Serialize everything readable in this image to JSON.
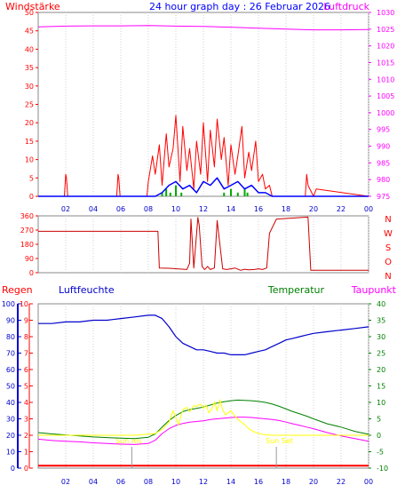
{
  "chart_data": [
    {
      "type": "line",
      "title": "24 hour graph day : 26 Februar 2026",
      "left_label": "Windstärke",
      "right_label": "Luftdruck",
      "x_ticks": [
        "02",
        "04",
        "06",
        "08",
        "10",
        "12",
        "14",
        "16",
        "18",
        "20",
        "22",
        "00"
      ],
      "y_left": {
        "range": [
          0,
          50
        ],
        "ticks": [
          "0",
          "5",
          "10",
          "15",
          "20",
          "25",
          "30",
          "35",
          "40",
          "45",
          "50"
        ]
      },
      "y_right": {
        "range": [
          975,
          1030
        ],
        "ticks": [
          "975",
          "980",
          "985",
          "990",
          "995",
          "1000",
          "1005",
          "1010",
          "1015",
          "1020",
          "1025",
          "1030"
        ]
      },
      "series": [
        {
          "key": "gust",
          "hours": [
            0,
            1.9,
            2.0,
            2.05,
            2.15,
            5.7,
            5.8,
            5.85,
            5.95,
            7.9,
            8.0,
            8.3,
            8.5,
            8.8,
            9.0,
            9.3,
            9.5,
            9.8,
            10.0,
            10.3,
            10.5,
            10.8,
            11.0,
            11.3,
            11.5,
            11.8,
            12.0,
            12.3,
            12.5,
            12.8,
            13.0,
            13.3,
            13.5,
            13.8,
            14.0,
            14.3,
            14.5,
            14.8,
            15.0,
            15.3,
            15.5,
            15.8,
            16.0,
            16.3,
            16.5,
            16.8,
            17.0,
            17.3,
            19.4,
            19.5,
            19.6,
            20.0,
            20.2,
            24
          ],
          "values": [
            0,
            0,
            6,
            5,
            0,
            0,
            6,
            5,
            0,
            0,
            4,
            11,
            6,
            14,
            3,
            17,
            8,
            13,
            22,
            4,
            19,
            7,
            13,
            2,
            15,
            6,
            20,
            4,
            18,
            8,
            21,
            10,
            16,
            3,
            14,
            6,
            11,
            19,
            5,
            12,
            7,
            15,
            4,
            6,
            2,
            3,
            0,
            0,
            0,
            6,
            3,
            0,
            2,
            0
          ]
        },
        {
          "key": "wind",
          "hours": [
            0,
            8.5,
            9,
            9.5,
            10,
            10.5,
            11,
            11.5,
            12,
            12.5,
            13,
            13.5,
            14,
            14.5,
            15,
            15.5,
            16,
            16.5,
            17,
            24
          ],
          "values": [
            0,
            0,
            1,
            3,
            4,
            2,
            3,
            1,
            4,
            3,
            5,
            2,
            3,
            4,
            2,
            3,
            1,
            1,
            0,
            0
          ]
        },
        {
          "key": "rain",
          "hours": [
            9,
            9.3,
            9.6,
            10,
            10.4,
            13.5,
            14,
            14.5,
            15,
            15.2
          ],
          "values": [
            1,
            2,
            1,
            3,
            1,
            1,
            2,
            1,
            2,
            1
          ]
        },
        {
          "key": "pressure",
          "hours": [
            0,
            2,
            4,
            6,
            8,
            10,
            12,
            14,
            16,
            18,
            20,
            22,
            24
          ],
          "values": [
            1025.7,
            1025.9,
            1026.0,
            1026.0,
            1026.1,
            1025.9,
            1025.8,
            1025.6,
            1025.3,
            1025.0,
            1024.8,
            1024.8,
            1024.9
          ]
        }
      ]
    },
    {
      "type": "line",
      "right_label": "N W S O N",
      "x_ticks": [],
      "y_left": {
        "range": [
          0,
          360
        ],
        "ticks": [
          "0",
          "90",
          "180",
          "270",
          "360"
        ]
      },
      "right_letters": [
        "N",
        "W",
        "S",
        "O",
        "N"
      ],
      "series": [
        {
          "key": "winddir",
          "hours": [
            0,
            8.7,
            8.8,
            9.5,
            10.8,
            11.0,
            11.1,
            11.3,
            11.6,
            11.7,
            11.9,
            12.1,
            12.3,
            12.5,
            12.8,
            13.0,
            13.4,
            13.7,
            14.0,
            14.3,
            14.7,
            15.0,
            15.3,
            15.7,
            16.0,
            16.3,
            16.6,
            16.8,
            17.3,
            19.6,
            19.8,
            20.1,
            24
          ],
          "values": [
            262,
            262,
            30,
            28,
            20,
            60,
            340,
            30,
            350,
            300,
            40,
            20,
            40,
            20,
            30,
            330,
            25,
            20,
            25,
            30,
            15,
            22,
            18,
            20,
            25,
            20,
            30,
            250,
            340,
            352,
            15,
            15,
            15
          ]
        }
      ]
    },
    {
      "type": "line",
      "left_label_1": "Regen",
      "left_label_2": "Luftfeuchte",
      "right_label_1": "Temperatur",
      "right_label_2": "Taupunkt",
      "x_ticks": [
        "02",
        "04",
        "06",
        "08",
        "10",
        "12",
        "14",
        "16",
        "18",
        "20",
        "22",
        "00"
      ],
      "y_left_humidity": {
        "range": [
          0,
          100
        ],
        "ticks": [
          "0",
          "10",
          "20",
          "30",
          "40",
          "50",
          "60",
          "70",
          "80",
          "90",
          "100"
        ]
      },
      "y_left_rain": {
        "range": [
          0,
          10
        ],
        "ticks": [
          "0",
          "1",
          "2",
          "3",
          "4",
          "5",
          "6",
          "7",
          "8",
          "9",
          "10"
        ]
      },
      "y_right": {
        "range": [
          -10,
          40
        ],
        "ticks": [
          "-10",
          "-5",
          "0",
          "5",
          "10",
          "15",
          "20",
          "25",
          "30",
          "35",
          "40"
        ]
      },
      "annotations": [
        "Sun Ris",
        "Sun Set"
      ],
      "series": [
        {
          "key": "humidity",
          "hours": [
            0,
            1,
            2,
            3,
            4,
            5,
            6,
            7,
            8,
            8.5,
            9,
            9.5,
            10,
            10.5,
            11,
            11.5,
            12,
            12.5,
            13,
            13.5,
            14,
            14.5,
            15,
            15.5,
            16,
            16.5,
            17,
            17.5,
            18,
            18.5,
            19,
            19.5,
            20,
            21,
            22,
            23,
            24
          ],
          "values": [
            88,
            88,
            89,
            89,
            90,
            90,
            91,
            92,
            93,
            93,
            91,
            86,
            80,
            76,
            74,
            72,
            72,
            71,
            70,
            70,
            69,
            69,
            69,
            70,
            71,
            72,
            74,
            76,
            78,
            79,
            80,
            81,
            82,
            83,
            84,
            85,
            86
          ]
        },
        {
          "key": "temperature",
          "hours": [
            0,
            1,
            2,
            3,
            4,
            5,
            6,
            7,
            8,
            8.5,
            9,
            9.5,
            10,
            10.5,
            11,
            11.5,
            12,
            12.5,
            13,
            13.5,
            14,
            14.5,
            15,
            15.5,
            16,
            16.5,
            17,
            17.5,
            18,
            18.5,
            19,
            19.5,
            20,
            21,
            22,
            23,
            24
          ],
          "values": [
            0.8,
            0.4,
            0.1,
            -0.2,
            -0.5,
            -0.7,
            -0.9,
            -1.0,
            -0.6,
            0.4,
            2.5,
            4.5,
            6.0,
            7.2,
            7.8,
            8.2,
            8.6,
            9.2,
            9.8,
            10.2,
            10.5,
            10.7,
            10.6,
            10.5,
            10.3,
            10.0,
            9.5,
            8.8,
            8.0,
            7.2,
            6.5,
            5.8,
            5.0,
            3.5,
            2.5,
            1.2,
            0.3
          ]
        },
        {
          "key": "dewpoint",
          "hours": [
            0,
            1,
            2,
            3,
            4,
            5,
            6,
            7,
            8,
            8.5,
            9,
            9.5,
            10,
            10.5,
            11,
            11.5,
            12,
            12.5,
            13,
            13.5,
            14,
            14.5,
            15,
            15.5,
            16,
            16.5,
            17,
            17.5,
            18,
            18.5,
            19,
            19.5,
            20,
            21,
            22,
            23,
            24
          ],
          "values": [
            -1.2,
            -1.6,
            -1.8,
            -2.0,
            -2.3,
            -2.5,
            -2.7,
            -2.8,
            -2.5,
            -1.5,
            0.5,
            2.0,
            3.0,
            3.6,
            4.0,
            4.2,
            4.4,
            4.8,
            5.0,
            5.2,
            5.4,
            5.5,
            5.5,
            5.4,
            5.2,
            5.0,
            4.8,
            4.5,
            4.0,
            3.5,
            3.0,
            2.5,
            2.0,
            0.8,
            -0.2,
            -1.0,
            -1.8
          ]
        },
        {
          "key": "solar",
          "hours": [
            0,
            6.9,
            7.0,
            8.5,
            9.0,
            9.5,
            9.8,
            10.2,
            10.5,
            10.8,
            11.0,
            11.3,
            11.5,
            11.8,
            12.0,
            12.2,
            12.4,
            12.6,
            12.8,
            13.0,
            13.2,
            13.4,
            13.6,
            13.8,
            14.0,
            14.3,
            14.6,
            15.0,
            15.3,
            15.6,
            16.0,
            16.3,
            16.6,
            17.0,
            24
          ],
          "values": [
            0,
            0,
            0,
            0.5,
            1.8,
            4.0,
            7.5,
            3.2,
            7.8,
            8.5,
            7.2,
            9.0,
            8.8,
            9.5,
            8.2,
            9.2,
            6.8,
            8.0,
            10.2,
            7.5,
            10.8,
            7.8,
            6.2,
            6.8,
            7.5,
            5.8,
            4.5,
            3.2,
            2.0,
            1.2,
            0.6,
            0.3,
            0.1,
            0,
            0
          ]
        },
        {
          "key": "rain",
          "hours": [
            0,
            24
          ],
          "values": [
            0.15,
            0.15
          ]
        }
      ]
    }
  ],
  "colors": {
    "wind_title": "#ff0000",
    "pressure": "#ff00ff",
    "wind": "#0000ff",
    "gust": "#ff0000",
    "rain_bar": "#00aa00",
    "winddir": "#cc0000",
    "humidity": "#0000cc",
    "temperature": "#008000",
    "dewpoint": "#ff00ff",
    "solar": "#ffff00",
    "rain_line": "#ff0000",
    "title": "#0000ff",
    "grid": "#d0d0d0"
  }
}
